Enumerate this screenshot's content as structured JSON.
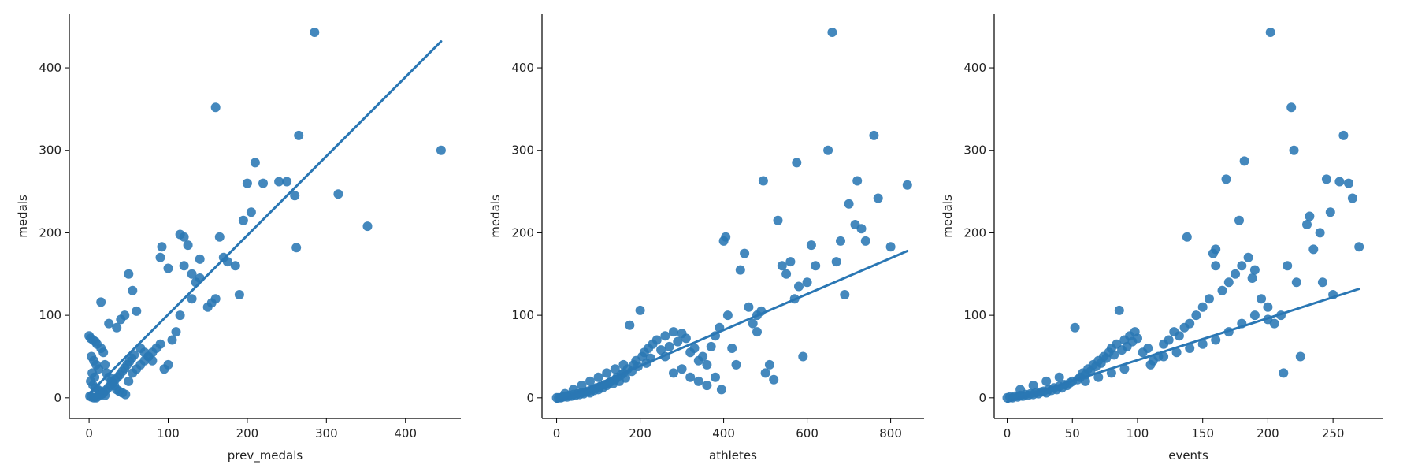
{
  "chart_data": [
    {
      "type": "scatter",
      "title": "",
      "xlabel": "prev_medals",
      "ylabel": "medals",
      "xlim": [
        -25,
        470
      ],
      "ylim": [
        -25,
        465
      ],
      "xticks": [
        0,
        100,
        200,
        300,
        400
      ],
      "yticks": [
        0,
        100,
        200,
        300,
        400
      ],
      "grid": false,
      "color": "#2a77b4",
      "fit_line": [
        [
          0,
          5
        ],
        [
          445,
          432
        ]
      ],
      "points": [
        [
          0,
          75
        ],
        [
          2,
          72
        ],
        [
          5,
          70
        ],
        [
          8,
          68
        ],
        [
          10,
          65
        ],
        [
          15,
          60
        ],
        [
          18,
          55
        ],
        [
          3,
          50
        ],
        [
          6,
          45
        ],
        [
          9,
          40
        ],
        [
          12,
          35
        ],
        [
          4,
          30
        ],
        [
          7,
          25
        ],
        [
          2,
          20
        ],
        [
          5,
          15
        ],
        [
          8,
          12
        ],
        [
          11,
          10
        ],
        [
          14,
          8
        ],
        [
          17,
          5
        ],
        [
          20,
          3
        ],
        [
          1,
          2
        ],
        [
          3,
          1
        ],
        [
          6,
          0
        ],
        [
          9,
          0
        ],
        [
          12,
          2
        ],
        [
          15,
          4
        ],
        [
          18,
          6
        ],
        [
          21,
          9
        ],
        [
          24,
          12
        ],
        [
          27,
          15
        ],
        [
          30,
          18
        ],
        [
          33,
          22
        ],
        [
          36,
          25
        ],
        [
          39,
          28
        ],
        [
          42,
          32
        ],
        [
          45,
          36
        ],
        [
          48,
          40
        ],
        [
          51,
          44
        ],
        [
          54,
          48
        ],
        [
          57,
          52
        ],
        [
          15,
          116
        ],
        [
          25,
          90
        ],
        [
          35,
          85
        ],
        [
          40,
          95
        ],
        [
          45,
          100
        ],
        [
          50,
          150
        ],
        [
          55,
          130
        ],
        [
          60,
          105
        ],
        [
          65,
          60
        ],
        [
          70,
          55
        ],
        [
          75,
          50
        ],
        [
          80,
          45
        ],
        [
          85,
          60
        ],
        [
          90,
          65
        ],
        [
          95,
          35
        ],
        [
          100,
          40
        ],
        [
          105,
          70
        ],
        [
          110,
          80
        ],
        [
          115,
          100
        ],
        [
          120,
          195
        ],
        [
          125,
          185
        ],
        [
          130,
          150
        ],
        [
          135,
          140
        ],
        [
          140,
          145
        ],
        [
          150,
          110
        ],
        [
          155,
          115
        ],
        [
          160,
          120
        ],
        [
          160,
          352
        ],
        [
          165,
          195
        ],
        [
          170,
          170
        ],
        [
          175,
          165
        ],
        [
          185,
          160
        ],
        [
          190,
          125
        ],
        [
          195,
          215
        ],
        [
          200,
          260
        ],
        [
          205,
          225
        ],
        [
          210,
          285
        ],
        [
          220,
          260
        ],
        [
          240,
          262
        ],
        [
          250,
          262
        ],
        [
          260,
          245
        ],
        [
          262,
          182
        ],
        [
          265,
          318
        ],
        [
          285,
          443
        ],
        [
          315,
          247
        ],
        [
          352,
          208
        ],
        [
          445,
          300
        ],
        [
          20,
          40
        ],
        [
          22,
          30
        ],
        [
          25,
          25
        ],
        [
          28,
          20
        ],
        [
          32,
          15
        ],
        [
          35,
          10
        ],
        [
          38,
          8
        ],
        [
          42,
          6
        ],
        [
          46,
          4
        ],
        [
          50,
          20
        ],
        [
          55,
          30
        ],
        [
          60,
          35
        ],
        [
          65,
          40
        ],
        [
          70,
          45
        ],
        [
          75,
          50
        ],
        [
          80,
          55
        ],
        [
          90,
          170
        ],
        [
          92,
          183
        ],
        [
          100,
          157
        ],
        [
          115,
          198
        ],
        [
          120,
          160
        ],
        [
          130,
          120
        ],
        [
          140,
          168
        ]
      ]
    },
    {
      "type": "scatter",
      "title": "",
      "xlabel": "athletes",
      "ylabel": "medals",
      "xlim": [
        -35,
        880
      ],
      "ylim": [
        -25,
        465
      ],
      "xticks": [
        0,
        200,
        400,
        600,
        800
      ],
      "yticks": [
        0,
        100,
        200,
        300,
        400
      ],
      "grid": false,
      "color": "#2a77b4",
      "fit_line": [
        [
          0,
          -5
        ],
        [
          840,
          178
        ]
      ],
      "points": [
        [
          0,
          0
        ],
        [
          5,
          0
        ],
        [
          10,
          0
        ],
        [
          15,
          1
        ],
        [
          20,
          2
        ],
        [
          25,
          1
        ],
        [
          30,
          3
        ],
        [
          35,
          2
        ],
        [
          40,
          4
        ],
        [
          45,
          3
        ],
        [
          50,
          5
        ],
        [
          55,
          4
        ],
        [
          60,
          6
        ],
        [
          65,
          5
        ],
        [
          70,
          7
        ],
        [
          75,
          8
        ],
        [
          80,
          6
        ],
        [
          85,
          10
        ],
        [
          90,
          9
        ],
        [
          95,
          12
        ],
        [
          100,
          10
        ],
        [
          105,
          14
        ],
        [
          110,
          12
        ],
        [
          115,
          16
        ],
        [
          120,
          15
        ],
        [
          125,
          18
        ],
        [
          130,
          20
        ],
        [
          135,
          17
        ],
        [
          140,
          22
        ],
        [
          145,
          25
        ],
        [
          150,
          20
        ],
        [
          155,
          28
        ],
        [
          160,
          30
        ],
        [
          165,
          24
        ],
        [
          170,
          35
        ],
        [
          175,
          88
        ],
        [
          180,
          32
        ],
        [
          185,
          40
        ],
        [
          190,
          45
        ],
        [
          195,
          38
        ],
        [
          200,
          106
        ],
        [
          205,
          50
        ],
        [
          210,
          55
        ],
        [
          215,
          42
        ],
        [
          220,
          60
        ],
        [
          225,
          48
        ],
        [
          230,
          65
        ],
        [
          240,
          70
        ],
        [
          250,
          58
        ],
        [
          260,
          75
        ],
        [
          270,
          62
        ],
        [
          280,
          80
        ],
        [
          290,
          68
        ],
        [
          300,
          78
        ],
        [
          310,
          72
        ],
        [
          320,
          55
        ],
        [
          330,
          60
        ],
        [
          340,
          45
        ],
        [
          350,
          50
        ],
        [
          360,
          40
        ],
        [
          370,
          62
        ],
        [
          380,
          75
        ],
        [
          390,
          85
        ],
        [
          395,
          10
        ],
        [
          400,
          190
        ],
        [
          405,
          195
        ],
        [
          410,
          100
        ],
        [
          420,
          60
        ],
        [
          430,
          40
        ],
        [
          440,
          155
        ],
        [
          450,
          175
        ],
        [
          460,
          110
        ],
        [
          470,
          90
        ],
        [
          480,
          100
        ],
        [
          490,
          105
        ],
        [
          495,
          263
        ],
        [
          500,
          30
        ],
        [
          510,
          40
        ],
        [
          520,
          22
        ],
        [
          530,
          215
        ],
        [
          540,
          160
        ],
        [
          550,
          150
        ],
        [
          560,
          165
        ],
        [
          570,
          120
        ],
        [
          575,
          285
        ],
        [
          580,
          135
        ],
        [
          590,
          50
        ],
        [
          600,
          140
        ],
        [
          610,
          185
        ],
        [
          620,
          160
        ],
        [
          650,
          300
        ],
        [
          660,
          443
        ],
        [
          670,
          165
        ],
        [
          680,
          190
        ],
        [
          690,
          125
        ],
        [
          700,
          235
        ],
        [
          715,
          210
        ],
        [
          720,
          263
        ],
        [
          730,
          205
        ],
        [
          740,
          190
        ],
        [
          760,
          318
        ],
        [
          770,
          242
        ],
        [
          800,
          183
        ],
        [
          840,
          258
        ],
        [
          20,
          5
        ],
        [
          40,
          10
        ],
        [
          60,
          15
        ],
        [
          80,
          20
        ],
        [
          100,
          25
        ],
        [
          120,
          30
        ],
        [
          140,
          35
        ],
        [
          160,
          40
        ],
        [
          260,
          50
        ],
        [
          280,
          30
        ],
        [
          300,
          35
        ],
        [
          320,
          25
        ],
        [
          340,
          20
        ],
        [
          360,
          15
        ],
        [
          380,
          25
        ],
        [
          480,
          80
        ]
      ]
    },
    {
      "type": "scatter",
      "title": "",
      "xlabel": "events",
      "ylabel": "medals",
      "xlim": [
        -10,
        288
      ],
      "ylim": [
        -25,
        465
      ],
      "xticks": [
        0,
        50,
        100,
        150,
        200,
        250
      ],
      "yticks": [
        0,
        100,
        200,
        300,
        400
      ],
      "grid": false,
      "color": "#2a77b4",
      "fit_line": [
        [
          0,
          -5
        ],
        [
          270,
          132
        ]
      ],
      "points": [
        [
          0,
          0
        ],
        [
          2,
          1
        ],
        [
          4,
          0
        ],
        [
          6,
          2
        ],
        [
          8,
          1
        ],
        [
          10,
          3
        ],
        [
          12,
          2
        ],
        [
          14,
          4
        ],
        [
          16,
          3
        ],
        [
          18,
          5
        ],
        [
          20,
          4
        ],
        [
          22,
          6
        ],
        [
          24,
          5
        ],
        [
          26,
          7
        ],
        [
          28,
          8
        ],
        [
          30,
          6
        ],
        [
          32,
          10
        ],
        [
          34,
          9
        ],
        [
          36,
          12
        ],
        [
          38,
          10
        ],
        [
          40,
          14
        ],
        [
          42,
          12
        ],
        [
          44,
          16
        ],
        [
          46,
          15
        ],
        [
          48,
          18
        ],
        [
          50,
          20
        ],
        [
          52,
          85
        ],
        [
          54,
          22
        ],
        [
          56,
          25
        ],
        [
          58,
          30
        ],
        [
          60,
          28
        ],
        [
          62,
          35
        ],
        [
          64,
          32
        ],
        [
          66,
          40
        ],
        [
          68,
          38
        ],
        [
          70,
          45
        ],
        [
          72,
          42
        ],
        [
          74,
          50
        ],
        [
          76,
          48
        ],
        [
          78,
          55
        ],
        [
          80,
          60
        ],
        [
          82,
          52
        ],
        [
          84,
          65
        ],
        [
          86,
          106
        ],
        [
          88,
          58
        ],
        [
          90,
          70
        ],
        [
          92,
          62
        ],
        [
          94,
          75
        ],
        [
          96,
          68
        ],
        [
          98,
          80
        ],
        [
          100,
          72
        ],
        [
          104,
          55
        ],
        [
          108,
          60
        ],
        [
          112,
          45
        ],
        [
          116,
          50
        ],
        [
          120,
          65
        ],
        [
          124,
          70
        ],
        [
          128,
          80
        ],
        [
          132,
          75
        ],
        [
          136,
          85
        ],
        [
          138,
          195
        ],
        [
          140,
          90
        ],
        [
          145,
          100
        ],
        [
          150,
          110
        ],
        [
          155,
          120
        ],
        [
          158,
          175
        ],
        [
          160,
          180
        ],
        [
          165,
          130
        ],
        [
          168,
          265
        ],
        [
          170,
          140
        ],
        [
          175,
          150
        ],
        [
          178,
          215
        ],
        [
          180,
          160
        ],
        [
          182,
          287
        ],
        [
          185,
          170
        ],
        [
          188,
          145
        ],
        [
          190,
          155
        ],
        [
          195,
          120
        ],
        [
          200,
          110
        ],
        [
          202,
          443
        ],
        [
          205,
          90
        ],
        [
          210,
          100
        ],
        [
          212,
          30
        ],
        [
          215,
          160
        ],
        [
          218,
          352
        ],
        [
          220,
          300
        ],
        [
          222,
          140
        ],
        [
          225,
          50
        ],
        [
          230,
          210
        ],
        [
          232,
          220
        ],
        [
          235,
          180
        ],
        [
          240,
          200
        ],
        [
          242,
          140
        ],
        [
          245,
          265
        ],
        [
          248,
          225
        ],
        [
          250,
          125
        ],
        [
          255,
          262
        ],
        [
          258,
          318
        ],
        [
          262,
          260
        ],
        [
          265,
          242
        ],
        [
          270,
          183
        ],
        [
          10,
          10
        ],
        [
          20,
          15
        ],
        [
          30,
          20
        ],
        [
          40,
          25
        ],
        [
          60,
          20
        ],
        [
          70,
          25
        ],
        [
          80,
          30
        ],
        [
          90,
          35
        ],
        [
          110,
          40
        ],
        [
          120,
          50
        ],
        [
          130,
          55
        ],
        [
          140,
          60
        ],
        [
          150,
          65
        ],
        [
          160,
          70
        ],
        [
          170,
          80
        ],
        [
          180,
          90
        ],
        [
          190,
          100
        ],
        [
          200,
          95
        ],
        [
          160,
          160
        ]
      ]
    }
  ]
}
